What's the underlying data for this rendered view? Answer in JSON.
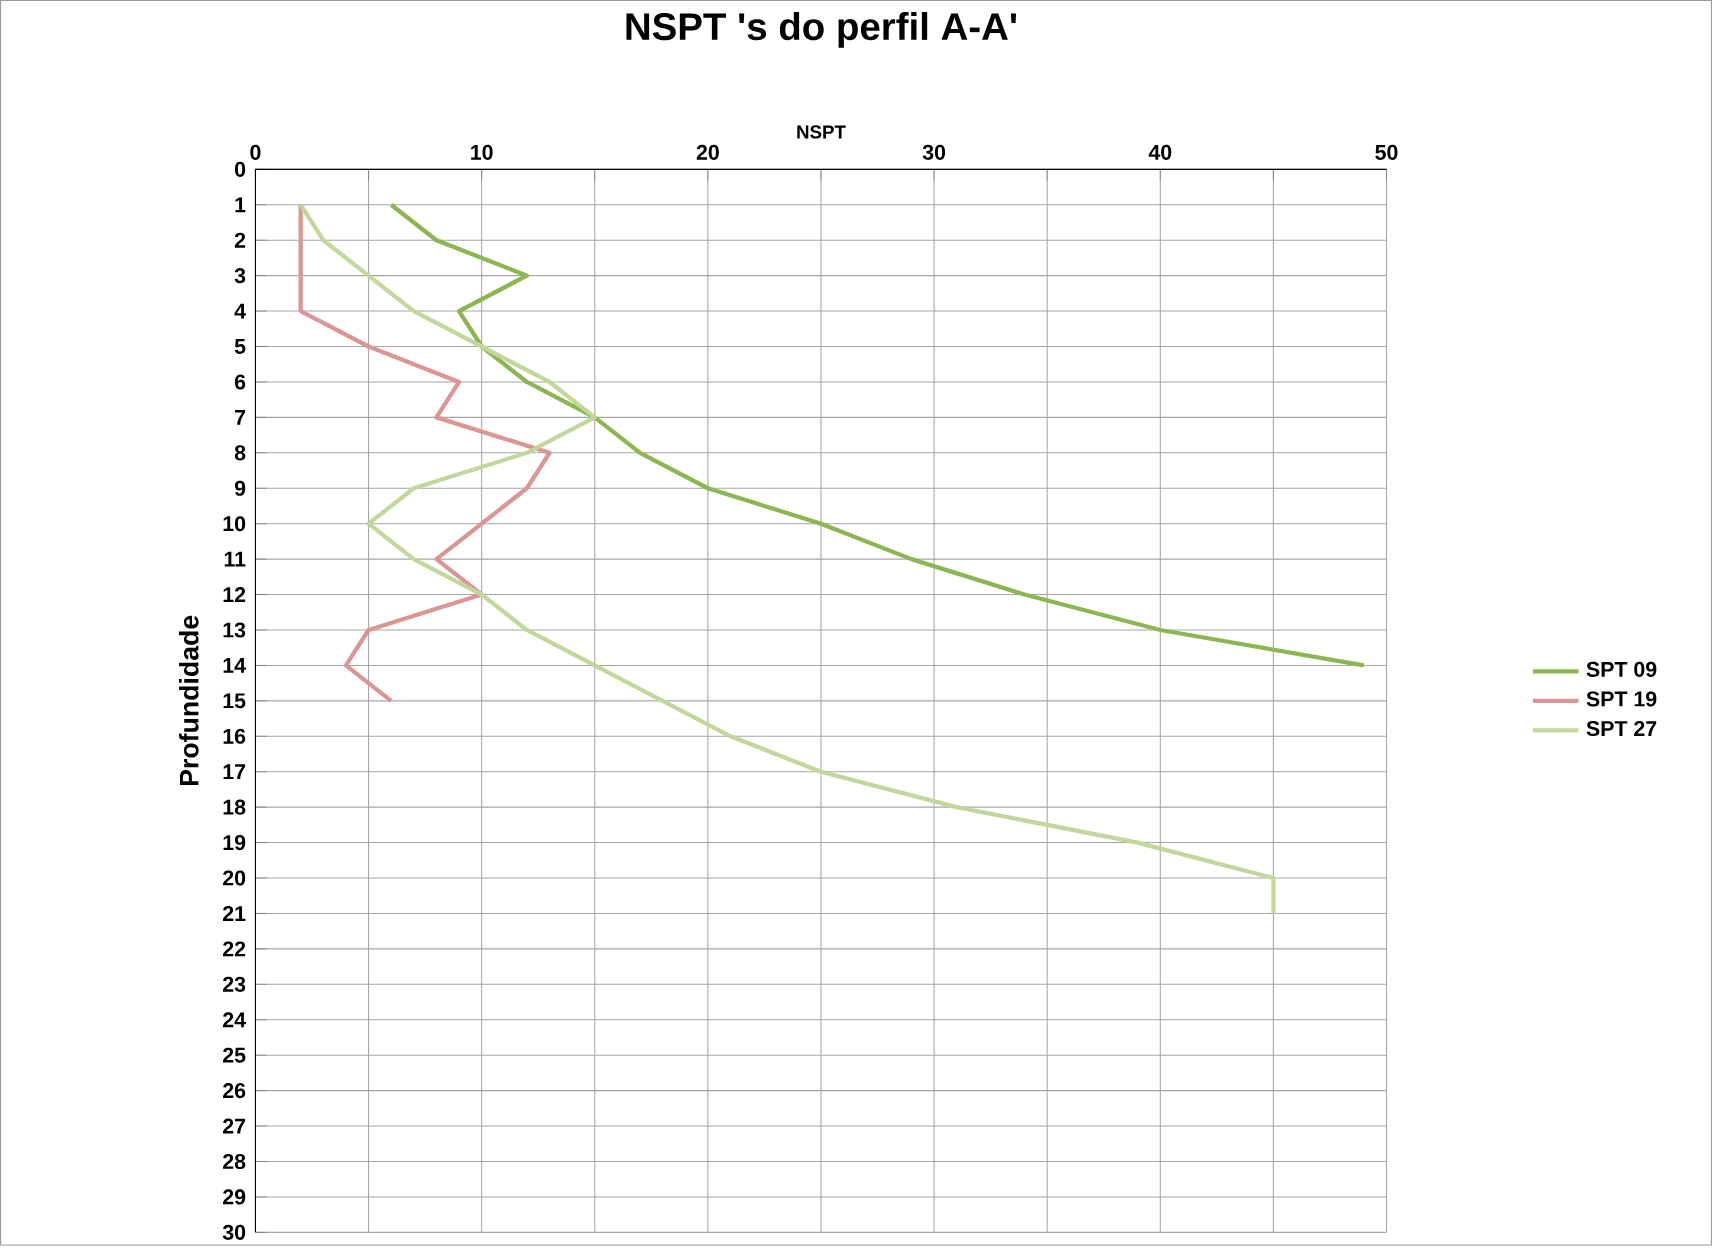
{
  "chart_data": {
    "type": "line",
    "orientation": "horizontal",
    "title": "NSPT 's do perfil A-A'",
    "xlabel": "NSPT",
    "ylabel": "Profundidade",
    "xlim": [
      0,
      50
    ],
    "xticks": [
      0,
      {
        "value": 5,
        "label": null
      },
      10,
      {
        "value": 15,
        "label": null
      },
      20,
      {
        "value": 25,
        "label": null
      },
      30,
      {
        "value": 35,
        "label": null
      },
      40,
      {
        "value": 45,
        "label": null
      },
      50
    ],
    "ylim": [
      30,
      0
    ],
    "yticks": [
      0,
      1,
      2,
      3,
      4,
      5,
      6,
      7,
      8,
      9,
      10,
      11,
      12,
      13,
      14,
      15,
      16,
      17,
      18,
      19,
      20,
      21,
      22,
      23,
      24,
      25,
      26,
      27,
      28,
      29,
      30
    ],
    "grid": true,
    "legend": "right",
    "marker": "none",
    "line_style": "solid",
    "series": [
      {
        "name": "SPT 09",
        "color": "#8db552",
        "x": [
          1,
          2,
          3,
          4,
          5,
          6,
          7,
          8,
          9,
          10,
          11,
          12,
          13,
          14
        ],
        "values": [
          6,
          8,
          12,
          9,
          10,
          12,
          15,
          17,
          20,
          25,
          29,
          34,
          40,
          49
        ]
      },
      {
        "name": "SPT 19",
        "color": "#d99694",
        "x": [
          1,
          2,
          3,
          4,
          5,
          6,
          7,
          8,
          9,
          10,
          11,
          12,
          13,
          14,
          15
        ],
        "values": [
          2,
          2,
          2,
          2,
          5,
          9,
          8,
          13,
          12,
          10,
          8,
          10,
          5,
          4,
          6
        ]
      },
      {
        "name": "SPT 27",
        "color": "#c3d69b",
        "x": [
          1,
          2,
          3,
          4,
          5,
          6,
          7,
          8,
          9,
          10,
          11,
          12,
          13,
          14,
          15,
          16,
          17,
          18,
          19,
          20,
          21
        ],
        "values": [
          2,
          3,
          5,
          7,
          10,
          13,
          15,
          12,
          7,
          5,
          7,
          10,
          12,
          15,
          18,
          21,
          25,
          31,
          39,
          45,
          45
        ]
      }
    ]
  }
}
